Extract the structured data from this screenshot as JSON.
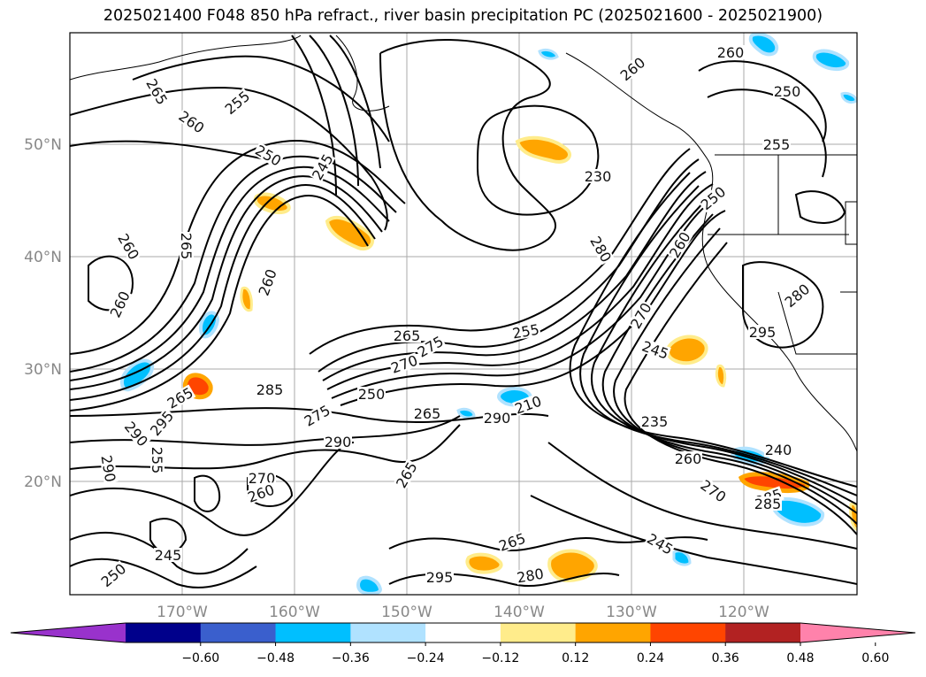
{
  "title": "2025021400 F048 850 hPa refract., river basin precipitation PC (2025021600 - 2025021900)",
  "lat_labels": [
    "50°N",
    "40°N",
    "30°N",
    "20°N"
  ],
  "lon_labels": [
    "170°W",
    "160°W",
    "150°W",
    "140°W",
    "130°W",
    "120°W"
  ],
  "colorbar": {
    "colors": [
      "#9932cc",
      "#00008b",
      "#3a5fcd",
      "#00bfff",
      "#b0e2ff",
      "#ffffff",
      "#ffec8b",
      "#ffa500",
      "#ff4500",
      "#b22222",
      "#ff82ab"
    ],
    "ticks": [
      "−0.60",
      "−0.48",
      "−0.36",
      "−0.24",
      "−0.12",
      "0.12",
      "0.24",
      "0.36",
      "0.48",
      "0.60"
    ]
  },
  "contour_labels": [
    "265",
    "260",
    "255",
    "250",
    "245",
    "260",
    "265",
    "260",
    "265",
    "255",
    "260",
    "265",
    "275",
    "270",
    "255",
    "245",
    "250",
    "265",
    "285",
    "275",
    "290",
    "295",
    "290",
    "290",
    "270",
    "260",
    "265",
    "265",
    "295",
    "280",
    "280",
    "270",
    "260",
    "260",
    "250",
    "255",
    "230",
    "250",
    "260",
    "210",
    "235",
    "240",
    "260",
    "270",
    "285",
    "245",
    "290",
    "280",
    "295",
    "285",
    "245",
    "250"
  ]
}
